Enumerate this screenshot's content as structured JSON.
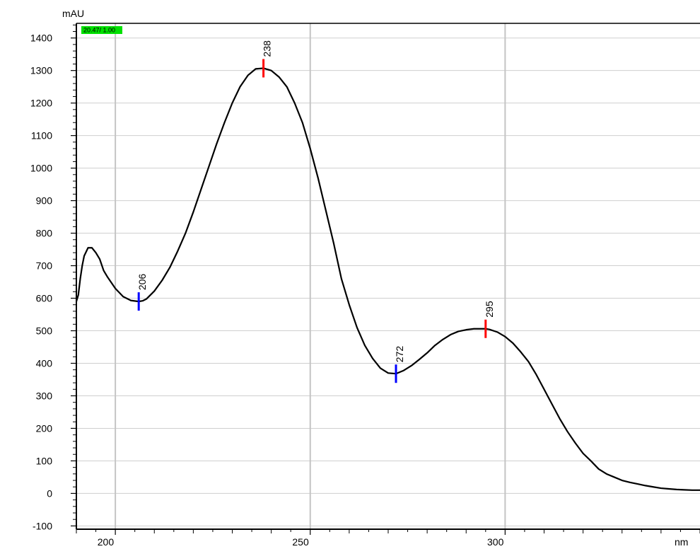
{
  "chart_data": {
    "type": "line",
    "ylabel": "mAU",
    "xlabel": "nm",
    "badge": "20.47/ 1.00",
    "badge_color": "#00e000",
    "line_color": "#000000",
    "grid": true,
    "xlim": [
      190,
      350
    ],
    "ylim": [
      -110,
      1445
    ],
    "x_ticks": [
      200,
      250,
      300
    ],
    "y_ticks": [
      -100,
      0,
      100,
      200,
      300,
      400,
      500,
      600,
      700,
      800,
      900,
      1000,
      1100,
      1200,
      1300,
      1400
    ],
    "series": [
      {
        "x": [
          190.0,
          190.5,
          191.0,
          191.5,
          192.0,
          193.0,
          194.0,
          195.0,
          196.0,
          197.0,
          198.0,
          200.0,
          202.0,
          204.0,
          206.0,
          207.0,
          208.0,
          210.0,
          212.0,
          214.0,
          216.0,
          218.0,
          220.0,
          222.0,
          224.0,
          226.0,
          228.0,
          230.0,
          232.0,
          234.0,
          236.0,
          238.0,
          240.0,
          242.0,
          244.0,
          246.0,
          248.0,
          250.0,
          252.0,
          254.0,
          256.0,
          258.0,
          260.0,
          262.0,
          264.0,
          266.0,
          268.0,
          270.0,
          272.0,
          274.0,
          276.0,
          278.0,
          280.0,
          282.0,
          284.0,
          286.0,
          288.0,
          290.0,
          292.0,
          294.0,
          295.0,
          296.0,
          298.0,
          300.0,
          302.0,
          304.0,
          306.0,
          308.0,
          310.0,
          312.0,
          314.0,
          316.0,
          318.0,
          320.0,
          322.0,
          324.0,
          326.0,
          328.0,
          330.0,
          332.0,
          334.0,
          336.0,
          338.0,
          340.0,
          342.0,
          344.0,
          346.0,
          348.0,
          350.0
        ],
        "y": [
          590,
          610,
          660,
          700,
          730,
          755,
          755,
          740,
          720,
          685,
          665,
          630,
          605,
          593,
          590,
          592,
          598,
          622,
          655,
          695,
          745,
          800,
          865,
          935,
          1005,
          1075,
          1140,
          1200,
          1250,
          1285,
          1305,
          1307,
          1300,
          1280,
          1250,
          1200,
          1140,
          1060,
          970,
          870,
          770,
          660,
          580,
          510,
          455,
          415,
          385,
          370,
          368,
          378,
          393,
          412,
          432,
          455,
          473,
          488,
          498,
          503,
          506,
          506,
          506,
          504,
          496,
          482,
          462,
          435,
          405,
          365,
          320,
          275,
          230,
          190,
          155,
          123,
          100,
          75,
          60,
          50,
          40,
          34,
          29,
          24,
          20,
          16,
          14,
          12,
          11,
          10,
          10
        ]
      }
    ],
    "markers": [
      {
        "x": 206,
        "y": 590,
        "label": "206",
        "kind": "valley",
        "color": "#0000ff"
      },
      {
        "x": 238,
        "y": 1307,
        "label": "238",
        "kind": "peak",
        "color": "#ff0000"
      },
      {
        "x": 272,
        "y": 368,
        "label": "272",
        "kind": "valley",
        "color": "#0000ff"
      },
      {
        "x": 295,
        "y": 506,
        "label": "295",
        "kind": "peak",
        "color": "#ff0000"
      }
    ]
  }
}
